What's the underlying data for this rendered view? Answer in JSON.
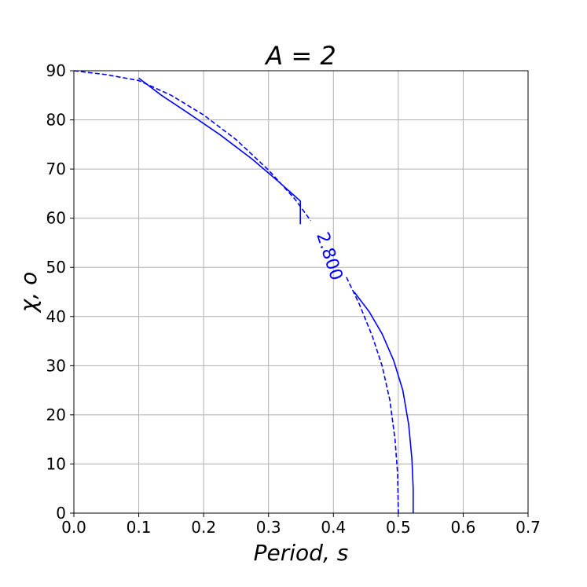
{
  "chart_data": {
    "type": "line",
    "title": "A = 2",
    "xlabel": "Period,  s",
    "ylabel": "χ,  o",
    "xlim": [
      0.0,
      0.7
    ],
    "ylim": [
      0,
      90
    ],
    "xticks": [
      "0.0",
      "0.1",
      "0.2",
      "0.3",
      "0.4",
      "0.5",
      "0.6",
      "0.7"
    ],
    "yticks": [
      "0",
      "10",
      "20",
      "30",
      "40",
      "50",
      "60",
      "70",
      "80",
      "90"
    ],
    "grid": true,
    "color": "#0000ff",
    "contour_label": "2.800",
    "series": [
      {
        "style": "solid",
        "segments": [
          [
            [
              0.1,
              88.5
            ],
            [
              0.135,
              85.0
            ],
            [
              0.175,
              81.5
            ],
            [
              0.225,
              77.0
            ],
            [
              0.275,
              72.0
            ],
            [
              0.315,
              67.5
            ],
            [
              0.349,
              63.5
            ],
            [
              0.349,
              58.8
            ]
          ],
          [
            [
              0.432,
              45.0
            ],
            [
              0.455,
              41.0
            ],
            [
              0.475,
              36.5
            ],
            [
              0.493,
              31.0
            ],
            [
              0.507,
              25.0
            ],
            [
              0.516,
              18.0
            ],
            [
              0.521,
              11.0
            ],
            [
              0.523,
              5.0
            ],
            [
              0.523,
              0.0
            ]
          ]
        ]
      },
      {
        "style": "dashed",
        "segments": [
          [
            [
              0.0,
              90.0
            ],
            [
              0.05,
              89.2
            ],
            [
              0.1,
              88.0
            ],
            [
              0.15,
              85.0
            ],
            [
              0.2,
              81.0
            ],
            [
              0.25,
              76.0
            ],
            [
              0.3,
              69.8
            ],
            [
              0.34,
              64.0
            ],
            [
              0.365,
              59.5
            ]
          ],
          [
            [
              0.42,
              48.0
            ],
            [
              0.44,
              42.5
            ],
            [
              0.46,
              36.0
            ],
            [
              0.475,
              30.0
            ],
            [
              0.487,
              23.0
            ],
            [
              0.495,
              15.0
            ],
            [
              0.499,
              8.0
            ],
            [
              0.5,
              0.0
            ]
          ]
        ]
      }
    ]
  }
}
